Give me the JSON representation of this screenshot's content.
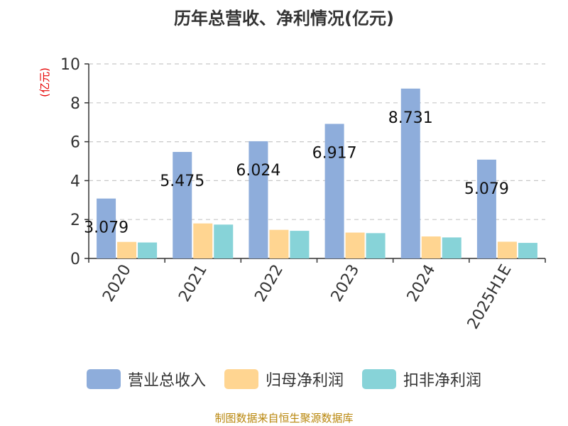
{
  "chart_data": {
    "type": "bar",
    "title": "历年总营收、净利情况(亿元)",
    "ylabel": "(亿元)",
    "xlabel": "",
    "ylim": [
      0,
      10
    ],
    "yticks": [
      0,
      2,
      4,
      6,
      8,
      10
    ],
    "grid": true,
    "legend_position": "bottom",
    "categories": [
      "2020",
      "2021",
      "2022",
      "2023",
      "2024",
      "2025H1E"
    ],
    "series": [
      {
        "name": "营业总收入",
        "color": "#8EADDB",
        "values": [
          3.079,
          5.475,
          6.024,
          6.917,
          8.731,
          5.079
        ],
        "labels": [
          "3.079",
          "5.475",
          "6.024",
          "6.917",
          "8.731",
          "5.079"
        ]
      },
      {
        "name": "归母净利润",
        "color": "#FFD591",
        "values": [
          0.85,
          1.8,
          1.47,
          1.33,
          1.13,
          0.86
        ]
      },
      {
        "name": "扣非净利润",
        "color": "#87D3D8",
        "values": [
          0.82,
          1.74,
          1.42,
          1.3,
          1.08,
          0.8
        ]
      }
    ]
  },
  "source": "制图数据来自恒生聚源数据库"
}
